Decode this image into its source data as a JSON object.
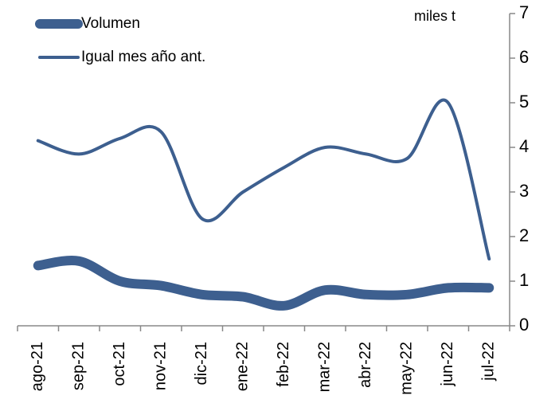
{
  "chart_data": {
    "type": "line",
    "unit_label": "miles t",
    "categories": [
      "ago-21",
      "sep-21",
      "oct-21",
      "nov-21",
      "dic-21",
      "ene-22",
      "feb-22",
      "mar-22",
      "abr-22",
      "may-22",
      "jun-22",
      "jul-22"
    ],
    "series": [
      {
        "name": "Volumen",
        "color": "#3d5f8f",
        "values": [
          1.35,
          1.45,
          1.0,
          0.9,
          0.7,
          0.65,
          0.45,
          0.8,
          0.7,
          0.7,
          0.85,
          0.85
        ]
      },
      {
        "name": "Igual mes año ant.",
        "color": "#3d5f8f",
        "values": [
          4.15,
          3.85,
          4.2,
          4.35,
          2.4,
          3.0,
          3.55,
          4.0,
          3.85,
          3.75,
          5.0,
          1.5
        ]
      }
    ],
    "ylim": [
      0,
      7
    ],
    "yticks": [
      0,
      1,
      2,
      3,
      4,
      5,
      6,
      7
    ],
    "y_axis_side": "right",
    "legend": "top-left"
  }
}
